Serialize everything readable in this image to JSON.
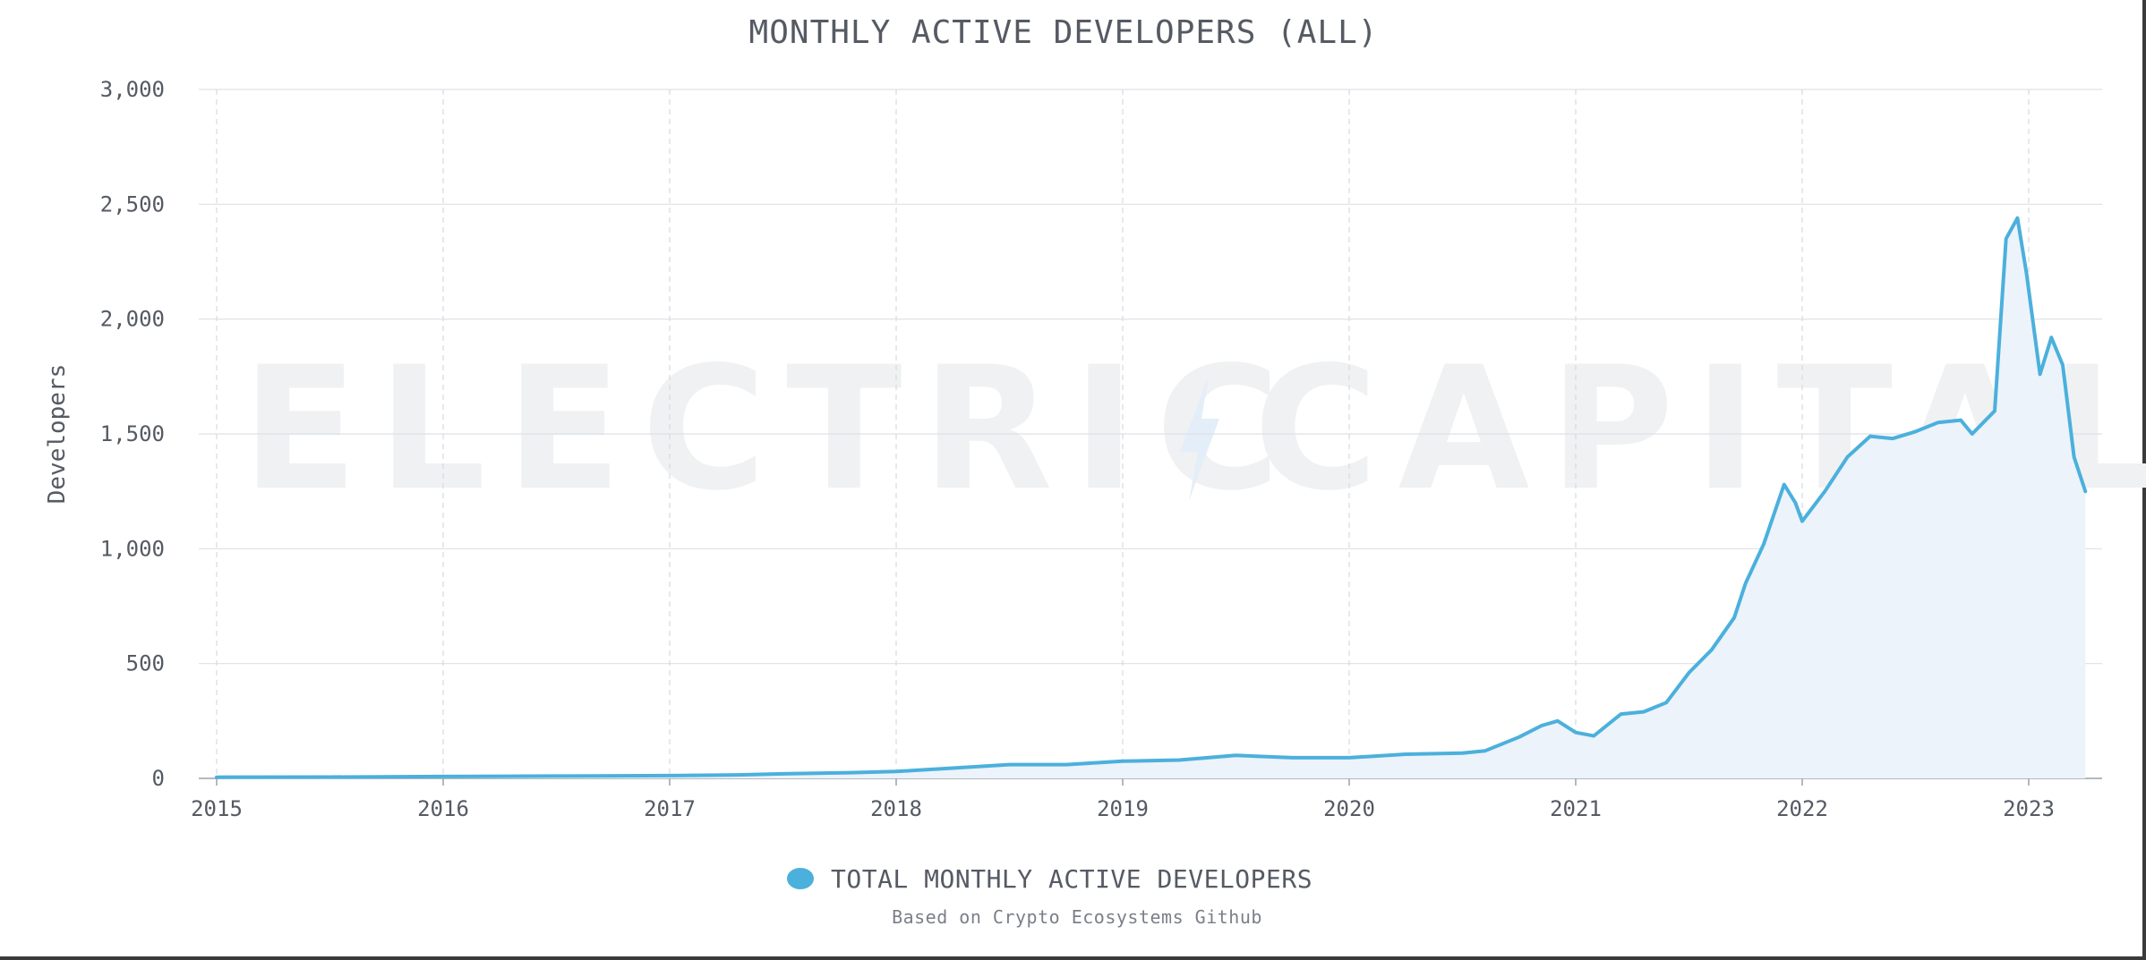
{
  "chart_data": {
    "type": "area",
    "title": "MONTHLY ACTIVE DEVELOPERS (ALL)",
    "ylabel": "Developers",
    "xlabel": "",
    "ylim": [
      0,
      3000
    ],
    "xlim": [
      2015.0,
      2023.3
    ],
    "y_ticks": [
      {
        "v": 0,
        "label": "0"
      },
      {
        "v": 500,
        "label": "500"
      },
      {
        "v": 1000,
        "label": "1,000"
      },
      {
        "v": 1500,
        "label": "1,500"
      },
      {
        "v": 2000,
        "label": "2,000"
      },
      {
        "v": 2500,
        "label": "2,500"
      },
      {
        "v": 3000,
        "label": "3,000"
      }
    ],
    "x_ticks": [
      {
        "v": 2015,
        "label": "2015"
      },
      {
        "v": 2016,
        "label": "2016"
      },
      {
        "v": 2017,
        "label": "2017"
      },
      {
        "v": 2018,
        "label": "2018"
      },
      {
        "v": 2019,
        "label": "2019"
      },
      {
        "v": 2020,
        "label": "2020"
      },
      {
        "v": 2021,
        "label": "2021"
      },
      {
        "v": 2022,
        "label": "2022"
      },
      {
        "v": 2023,
        "label": "2023"
      }
    ],
    "grid": true,
    "legend_position": "bottom-center",
    "series": [
      {
        "name": "TOTAL MONTHLY ACTIVE DEVELOPERS",
        "color": "#4bb0dc",
        "fill": "#ecf3fb",
        "points": [
          [
            2015.0,
            5
          ],
          [
            2015.5,
            6
          ],
          [
            2016.0,
            8
          ],
          [
            2016.5,
            10
          ],
          [
            2017.0,
            12
          ],
          [
            2017.3,
            15
          ],
          [
            2017.5,
            20
          ],
          [
            2017.8,
            25
          ],
          [
            2018.0,
            30
          ],
          [
            2018.25,
            45
          ],
          [
            2018.5,
            60
          ],
          [
            2018.75,
            60
          ],
          [
            2019.0,
            75
          ],
          [
            2019.25,
            80
          ],
          [
            2019.5,
            100
          ],
          [
            2019.75,
            90
          ],
          [
            2020.0,
            90
          ],
          [
            2020.25,
            105
          ],
          [
            2020.5,
            110
          ],
          [
            2020.6,
            120
          ],
          [
            2020.75,
            180
          ],
          [
            2020.85,
            230
          ],
          [
            2020.92,
            250
          ],
          [
            2021.0,
            200
          ],
          [
            2021.08,
            185
          ],
          [
            2021.2,
            280
          ],
          [
            2021.3,
            290
          ],
          [
            2021.4,
            330
          ],
          [
            2021.5,
            460
          ],
          [
            2021.6,
            560
          ],
          [
            2021.7,
            700
          ],
          [
            2021.75,
            850
          ],
          [
            2021.83,
            1020
          ],
          [
            2021.92,
            1280
          ],
          [
            2021.97,
            1200
          ],
          [
            2022.0,
            1120
          ],
          [
            2022.1,
            1250
          ],
          [
            2022.2,
            1400
          ],
          [
            2022.3,
            1490
          ],
          [
            2022.4,
            1480
          ],
          [
            2022.5,
            1510
          ],
          [
            2022.6,
            1550
          ],
          [
            2022.7,
            1560
          ],
          [
            2022.75,
            1500
          ],
          [
            2022.85,
            1600
          ],
          [
            2022.9,
            2350
          ],
          [
            2022.95,
            2440
          ],
          [
            2022.99,
            2200
          ],
          [
            2023.05,
            1760
          ],
          [
            2023.1,
            1920
          ],
          [
            2023.15,
            1800
          ],
          [
            2023.2,
            1400
          ],
          [
            2023.25,
            1250
          ]
        ]
      }
    ],
    "source_note": "Based on Crypto Ecosystems Github",
    "watermark": {
      "left": "ELECTRIC",
      "right": "CAPITAL",
      "bolt_icon": "lightning-bolt-icon"
    }
  }
}
